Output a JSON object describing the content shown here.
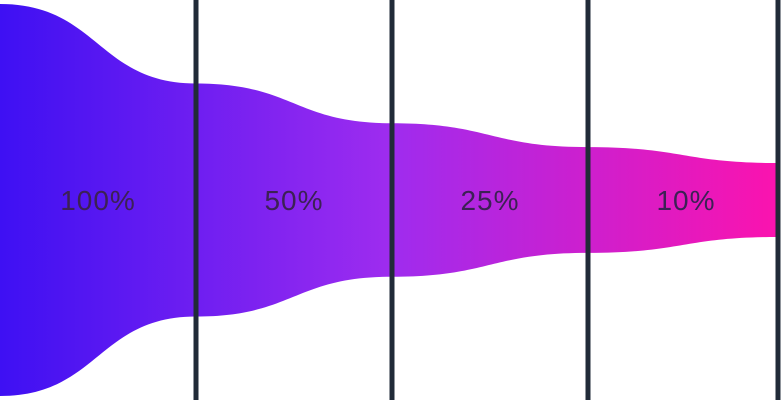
{
  "chart_data": {
    "type": "funnel",
    "orientation": "horizontal",
    "title": "",
    "legend": "none",
    "grid": "off",
    "stages": [
      {
        "label": "100%",
        "value": 100
      },
      {
        "label": "50%",
        "value": 50
      },
      {
        "label": "25%",
        "value": 25
      },
      {
        "label": "10%",
        "value": 10
      }
    ],
    "colors": {
      "gradient_start": "#3e10f3",
      "gradient_mid": "#9e2cef",
      "gradient_end": "#fb13ae",
      "divider": "#212b38",
      "label": "#3c2155",
      "background": "#ffffff"
    }
  }
}
